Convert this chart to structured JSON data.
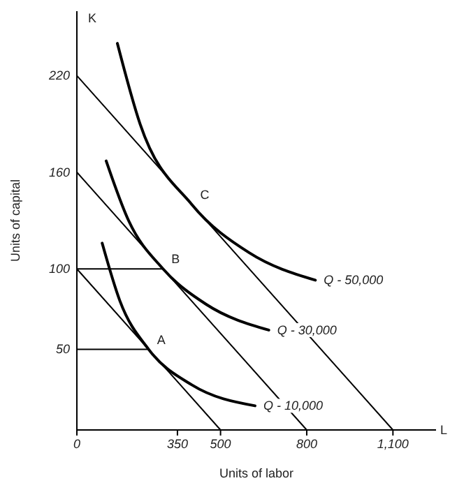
{
  "chart_data": {
    "type": "line",
    "xlabel": "Units of labor",
    "ylabel": "Units of capital",
    "xlim": [
      0,
      1250
    ],
    "ylim": [
      0,
      260
    ],
    "xticks": [
      {
        "value": 0,
        "label": "0"
      },
      350,
      500,
      800,
      {
        "value": 1100,
        "label": "1,100"
      }
    ],
    "yticks": [
      50,
      100,
      160,
      220
    ],
    "grid": false,
    "marker": "none",
    "line_style": "solid",
    "series": [
      {
        "color": "#000000",
        "x": [
          0,
          500
        ],
        "values": [
          100,
          0
        ]
      },
      {
        "color": "#000000",
        "x": [
          0,
          800
        ],
        "values": [
          160,
          0
        ]
      },
      {
        "color": "#000000",
        "x": [
          0,
          1100
        ],
        "values": [
          220,
          0
        ]
      },
      {
        "color": "#000000",
        "x": [
          0,
          250
        ],
        "values": [
          50,
          50
        ]
      },
      {
        "color": "#000000",
        "x": [
          0,
          300
        ],
        "values": [
          100,
          100
        ]
      },
      {
        "name": "Q - 10,000",
        "color": "#000000",
        "x": [
          88,
          150,
          250,
          400,
          620
        ],
        "values": [
          116,
          80,
          50,
          28,
          15
        ]
      },
      {
        "name": "Q - 30,000",
        "color": "#000000",
        "x": [
          102,
          180,
          300,
          450,
          668
        ],
        "values": [
          167,
          130,
          100,
          78,
          62
        ]
      },
      {
        "name": "Q - 50,000",
        "color": "#000000",
        "x": [
          141,
          220,
          400,
          600,
          830
        ],
        "values": [
          240,
          190,
          140,
          110,
          93
        ]
      }
    ],
    "annotations": [
      "K",
      "L",
      {
        "text": "A",
        "x": 250,
        "y": 50
      },
      {
        "text": "B",
        "x": 300,
        "y": 100
      },
      {
        "text": "C",
        "x": 400,
        "y": 140
      }
    ]
  }
}
